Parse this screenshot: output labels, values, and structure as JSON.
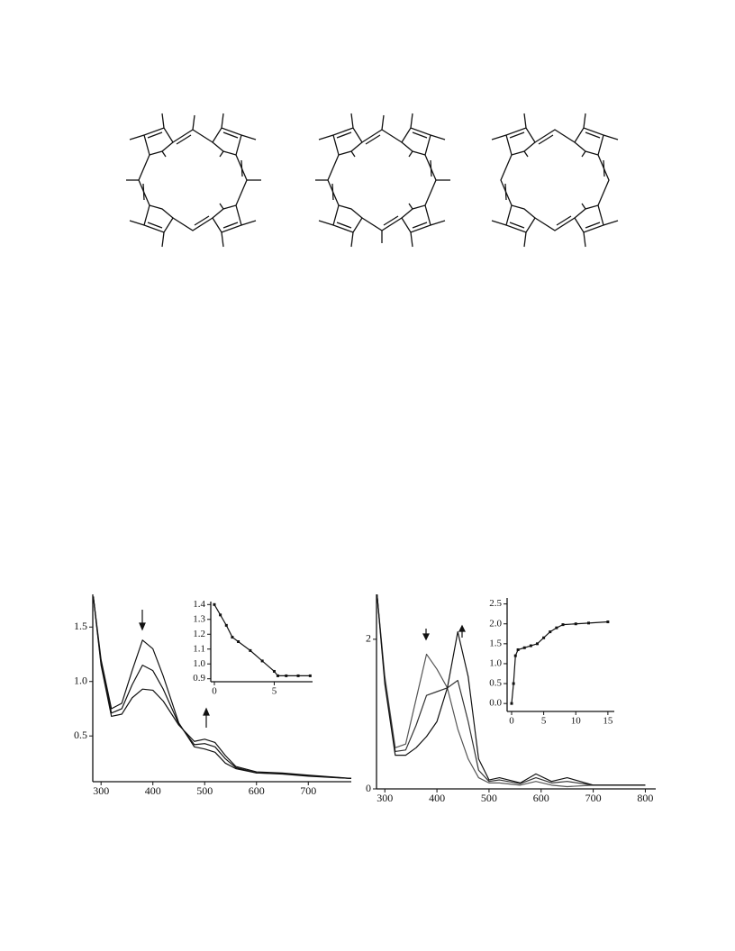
{
  "chart_data": [
    {
      "type": "line",
      "x": [
        285,
        300,
        320,
        340,
        360,
        380,
        400,
        420,
        450,
        480,
        500,
        520,
        540,
        560,
        600,
        650,
        700,
        783
      ],
      "series": [
        {
          "color": "#111111",
          "values": [
            1.78,
            1.2,
            0.75,
            0.8,
            1.1,
            1.38,
            1.3,
            1.05,
            0.62,
            0.4,
            0.38,
            0.35,
            0.25,
            0.2,
            0.16,
            0.15,
            0.13,
            0.11
          ]
        },
        {
          "color": "#111111",
          "values": [
            1.78,
            1.17,
            0.71,
            0.75,
            0.97,
            1.15,
            1.1,
            0.93,
            0.61,
            0.42,
            0.43,
            0.4,
            0.29,
            0.21,
            0.16,
            0.155,
            0.135,
            0.11
          ]
        },
        {
          "color": "#111111",
          "values": [
            1.78,
            1.15,
            0.68,
            0.7,
            0.85,
            0.93,
            0.92,
            0.82,
            0.6,
            0.45,
            0.47,
            0.44,
            0.32,
            0.22,
            0.17,
            0.16,
            0.14,
            0.11
          ]
        }
      ],
      "xlim": [
        284,
        783
      ],
      "ylim": [
        0.08,
        1.8
      ],
      "xticks": [
        300,
        400,
        500,
        600,
        700
      ],
      "yticks": [
        0.5,
        {
          "value": 1,
          "label": "1.0"
        },
        1.5
      ]
    },
    {
      "type": "line",
      "markers": true,
      "x": [
        0,
        0.5,
        1,
        1.5,
        2,
        3,
        4,
        5,
        5.3,
        6,
        7,
        8
      ],
      "series": [
        {
          "color": "#111111",
          "values": [
            1.4,
            1.33,
            1.26,
            1.18,
            1.15,
            1.09,
            1.02,
            0.95,
            0.92,
            0.92,
            0.92,
            0.92
          ]
        }
      ],
      "xlim": [
        -0.3,
        8.2
      ],
      "ylim": [
        0.88,
        1.42
      ],
      "xticks": [
        0,
        5
      ],
      "yticks": [
        0.9,
        {
          "value": 1,
          "label": "1.0"
        },
        1.1,
        1.2,
        1.3,
        1.4
      ]
    },
    {
      "type": "line",
      "x": [
        285,
        300,
        320,
        340,
        360,
        380,
        400,
        420,
        440,
        460,
        480,
        500,
        520,
        560,
        590,
        620,
        650,
        700,
        800
      ],
      "series": [
        {
          "color": "#555555",
          "values": [
            2.6,
            1.5,
            0.55,
            0.6,
            1.2,
            1.8,
            1.6,
            1.35,
            0.8,
            0.4,
            0.15,
            0.08,
            0.08,
            0.05,
            0.1,
            0.05,
            0.03,
            0.05,
            0.05
          ]
        },
        {
          "color": "#333333",
          "values": [
            2.6,
            1.45,
            0.5,
            0.52,
            0.85,
            1.25,
            1.3,
            1.35,
            1.45,
            0.9,
            0.25,
            0.1,
            0.12,
            0.07,
            0.15,
            0.08,
            0.1,
            0.05,
            0.05
          ]
        },
        {
          "color": "#111111",
          "values": [
            2.6,
            1.4,
            0.45,
            0.45,
            0.55,
            0.7,
            0.9,
            1.35,
            2.1,
            1.5,
            0.4,
            0.12,
            0.15,
            0.08,
            0.2,
            0.1,
            0.15,
            0.05,
            0.05
          ]
        }
      ],
      "xlim": [
        284,
        820
      ],
      "ylim": [
        0,
        2.6
      ],
      "xticks": [
        300,
        400,
        500,
        600,
        700,
        800
      ],
      "yticks": [
        0,
        2
      ]
    },
    {
      "type": "line",
      "markers": true,
      "x": [
        0,
        0.3,
        0.6,
        1,
        2,
        3,
        4,
        5,
        6,
        7,
        8,
        10,
        12,
        15
      ],
      "series": [
        {
          "color": "#111111",
          "values": [
            0,
            0.5,
            1.2,
            1.35,
            1.4,
            1.45,
            1.5,
            1.65,
            1.8,
            1.9,
            1.98,
            2.0,
            2.02,
            2.05
          ]
        }
      ],
      "xlim": [
        -0.7,
        16
      ],
      "ylim": [
        -0.2,
        2.65
      ],
      "xticks": [
        0,
        5,
        10,
        15
      ],
      "yticks": [
        {
          "value": 0,
          "label": "0.0"
        },
        0.5,
        {
          "value": 1,
          "label": "1.0"
        },
        1.5,
        {
          "value": 2,
          "label": "2.0"
        },
        2.5
      ]
    }
  ]
}
